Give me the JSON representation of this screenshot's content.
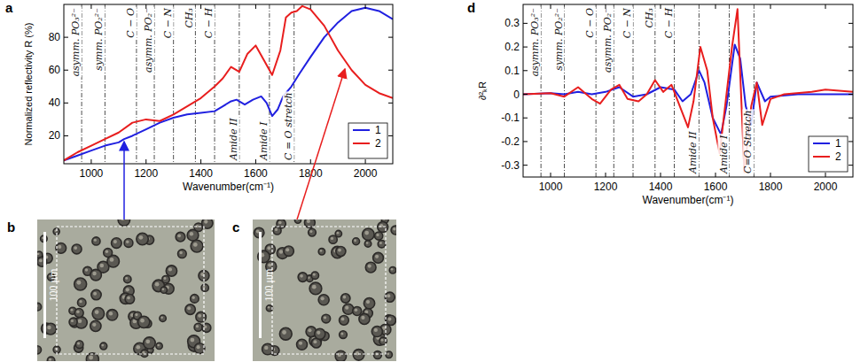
{
  "chart_data": [
    {
      "type": "line",
      "panel_label": "a",
      "x_label": "Wavenumber(cm⁻¹)",
      "y_label": "Normalized reflectivity R (%)",
      "xlim": [
        900,
        2100
      ],
      "ylim": [
        3,
        100
      ],
      "xticks": [
        1000,
        1200,
        1400,
        1600,
        1800,
        2000
      ],
      "yticks": [
        20,
        40,
        60,
        80
      ],
      "legend": "lower right",
      "annotations": [
        {
          "x": 965,
          "label": "asymm. PO₃²⁻"
        },
        {
          "x": 1050,
          "label": "symm. PO₂²⁻"
        },
        {
          "x": 1165,
          "label": "C − O"
        },
        {
          "x": 1230,
          "label": "asymm. PO₂⁻"
        },
        {
          "x": 1300,
          "label": "C − N"
        },
        {
          "x": 1380,
          "label": "CH₃"
        },
        {
          "x": 1450,
          "label": "C − H"
        },
        {
          "x": 1540,
          "label": "Amide II"
        },
        {
          "x": 1650,
          "label": "Amide I"
        },
        {
          "x": 1740,
          "label": "C = O stretch"
        }
      ],
      "series": [
        {
          "name": "1",
          "color": "#2020e0",
          "x": [
            900,
            950,
            1000,
            1050,
            1100,
            1120,
            1150,
            1200,
            1250,
            1300,
            1350,
            1400,
            1450,
            1480,
            1510,
            1530,
            1560,
            1590,
            1620,
            1640,
            1660,
            1680,
            1700,
            1730,
            1760,
            1800,
            1850,
            1900,
            1950,
            2000,
            2050,
            2100
          ],
          "values": [
            5,
            8,
            11,
            14,
            16,
            18,
            20,
            24,
            28,
            31,
            33,
            34,
            35,
            38,
            41,
            42,
            39,
            42,
            44,
            40,
            32,
            36,
            44,
            50,
            58,
            68,
            80,
            89,
            96,
            98,
            96,
            91
          ]
        },
        {
          "name": "2",
          "color": "#e81e1e",
          "x": [
            900,
            950,
            1000,
            1050,
            1100,
            1150,
            1200,
            1250,
            1300,
            1350,
            1400,
            1450,
            1480,
            1510,
            1540,
            1570,
            1600,
            1630,
            1660,
            1690,
            1710,
            1730,
            1750,
            1770,
            1800,
            1850,
            1900,
            1950,
            2000,
            2050,
            2100
          ],
          "values": [
            5,
            10,
            14,
            18,
            22,
            28,
            30,
            29,
            33,
            38,
            43,
            50,
            55,
            62,
            59,
            70,
            75,
            66,
            57,
            72,
            92,
            95,
            96,
            99,
            97,
            87,
            72,
            60,
            51,
            46,
            43
          ]
        }
      ]
    },
    {
      "type": "line",
      "panel_label": "d",
      "x_label": "Wavenumber(cm⁻¹)",
      "y_label": "∂²ₖR",
      "xlim": [
        900,
        2100
      ],
      "ylim": [
        -0.35,
        0.38
      ],
      "xticks": [
        1000,
        1200,
        1400,
        1600,
        1800,
        2000
      ],
      "yticks": [
        -0.3,
        -0.2,
        -0.1,
        0,
        0.1,
        0.2,
        0.3
      ],
      "legend": "lower right",
      "annotations": [
        {
          "x": 965,
          "label": "asymm. PO₃²⁻"
        },
        {
          "x": 1050,
          "label": "symm. PO₂²⁻"
        },
        {
          "x": 1165,
          "label": "C − O"
        },
        {
          "x": 1230,
          "label": "asymm. PO₂⁻"
        },
        {
          "x": 1300,
          "label": "C − N"
        },
        {
          "x": 1380,
          "label": "CH₃"
        },
        {
          "x": 1450,
          "label": "C − H"
        },
        {
          "x": 1540,
          "label": "Amide II"
        },
        {
          "x": 1650,
          "label": "Amide I"
        },
        {
          "x": 1740,
          "label": "C=O Stretch"
        }
      ],
      "series": [
        {
          "name": "1",
          "color": "#2020e0",
          "x": [
            900,
            1000,
            1050,
            1100,
            1150,
            1200,
            1250,
            1300,
            1350,
            1400,
            1450,
            1480,
            1510,
            1540,
            1560,
            1590,
            1620,
            1640,
            1670,
            1690,
            1710,
            1730,
            1750,
            1780,
            1800,
            1900,
            2000,
            2100
          ],
          "values": [
            0,
            0.005,
            0,
            0.01,
            0,
            0.01,
            0.03,
            -0.01,
            0,
            0.03,
            0.02,
            -0.03,
            0,
            0.1,
            0.05,
            -0.1,
            -0.17,
            -0.05,
            0.21,
            0.15,
            -0.05,
            -0.13,
            0.05,
            -0.03,
            -0.01,
            0,
            0,
            0
          ]
        },
        {
          "name": "2",
          "color": "#e81e1e",
          "x": [
            900,
            1000,
            1050,
            1100,
            1150,
            1180,
            1220,
            1250,
            1280,
            1320,
            1350,
            1380,
            1410,
            1440,
            1470,
            1500,
            1520,
            1545,
            1570,
            1590,
            1615,
            1635,
            1660,
            1680,
            1705,
            1730,
            1750,
            1770,
            1800,
            1850,
            1950,
            2000,
            2100
          ],
          "values": [
            0,
            0.005,
            -0.01,
            0.03,
            -0.02,
            -0.04,
            0.02,
            0.04,
            -0.02,
            -0.03,
            0,
            0.06,
            0.01,
            0.04,
            -0.05,
            -0.14,
            -0.03,
            0.2,
            0.1,
            -0.1,
            -0.25,
            -0.05,
            0.2,
            0.36,
            -0.33,
            -0.05,
            0.05,
            -0.13,
            -0.02,
            0,
            0.01,
            0.02,
            0.01
          ]
        }
      ]
    }
  ],
  "images": [
    {
      "panel_label": "b",
      "scale_label": "100 μm"
    },
    {
      "panel_label": "c",
      "scale_label": "100 μm"
    }
  ]
}
